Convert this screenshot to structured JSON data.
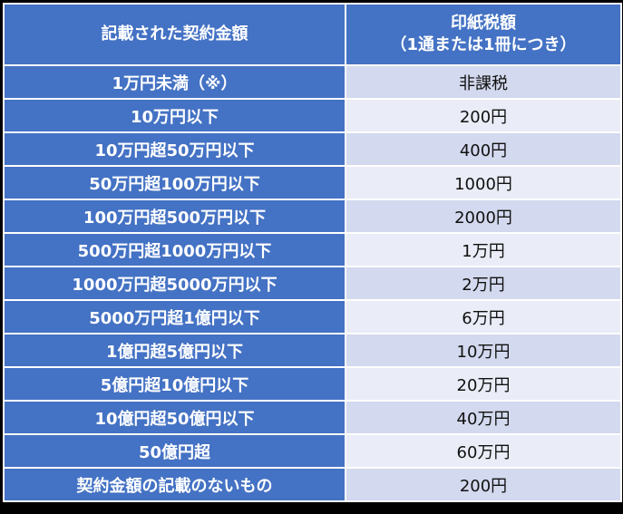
{
  "table": {
    "header": {
      "amount": "記載された契約金額",
      "tax_line1": "印紙税額",
      "tax_line2": "（1通または1冊につき）"
    },
    "rows": [
      {
        "amount": "1万円未満（※）",
        "tax": "非課税"
      },
      {
        "amount": "10万円以下",
        "tax": "200円"
      },
      {
        "amount": "10万円超50万円以下",
        "tax": "400円"
      },
      {
        "amount": "50万円超100万円以下",
        "tax": "1000円"
      },
      {
        "amount": "100万円超500万円以下",
        "tax": "2000円"
      },
      {
        "amount": "500万円超1000万円以下",
        "tax": "1万円"
      },
      {
        "amount": "1000万円超5000万円以下",
        "tax": "2万円"
      },
      {
        "amount": "5000万円超1億円以下",
        "tax": "6万円"
      },
      {
        "amount": "1億円超5億円以下",
        "tax": "10万円"
      },
      {
        "amount": "5億円超10億円以下",
        "tax": "20万円"
      },
      {
        "amount": "10億円超50億円以下",
        "tax": "40万円"
      },
      {
        "amount": "50億円超",
        "tax": "60万円"
      },
      {
        "amount": "契約金額の記載のないもの",
        "tax": "200円"
      }
    ]
  },
  "colors": {
    "header_bg": "#4472c4",
    "amount_bg": "#4472c4",
    "tax_bg_odd": "#d3d9ee",
    "tax_bg_even": "#eaedf7",
    "border": "#ffffff",
    "outer_bg": "#000000"
  }
}
